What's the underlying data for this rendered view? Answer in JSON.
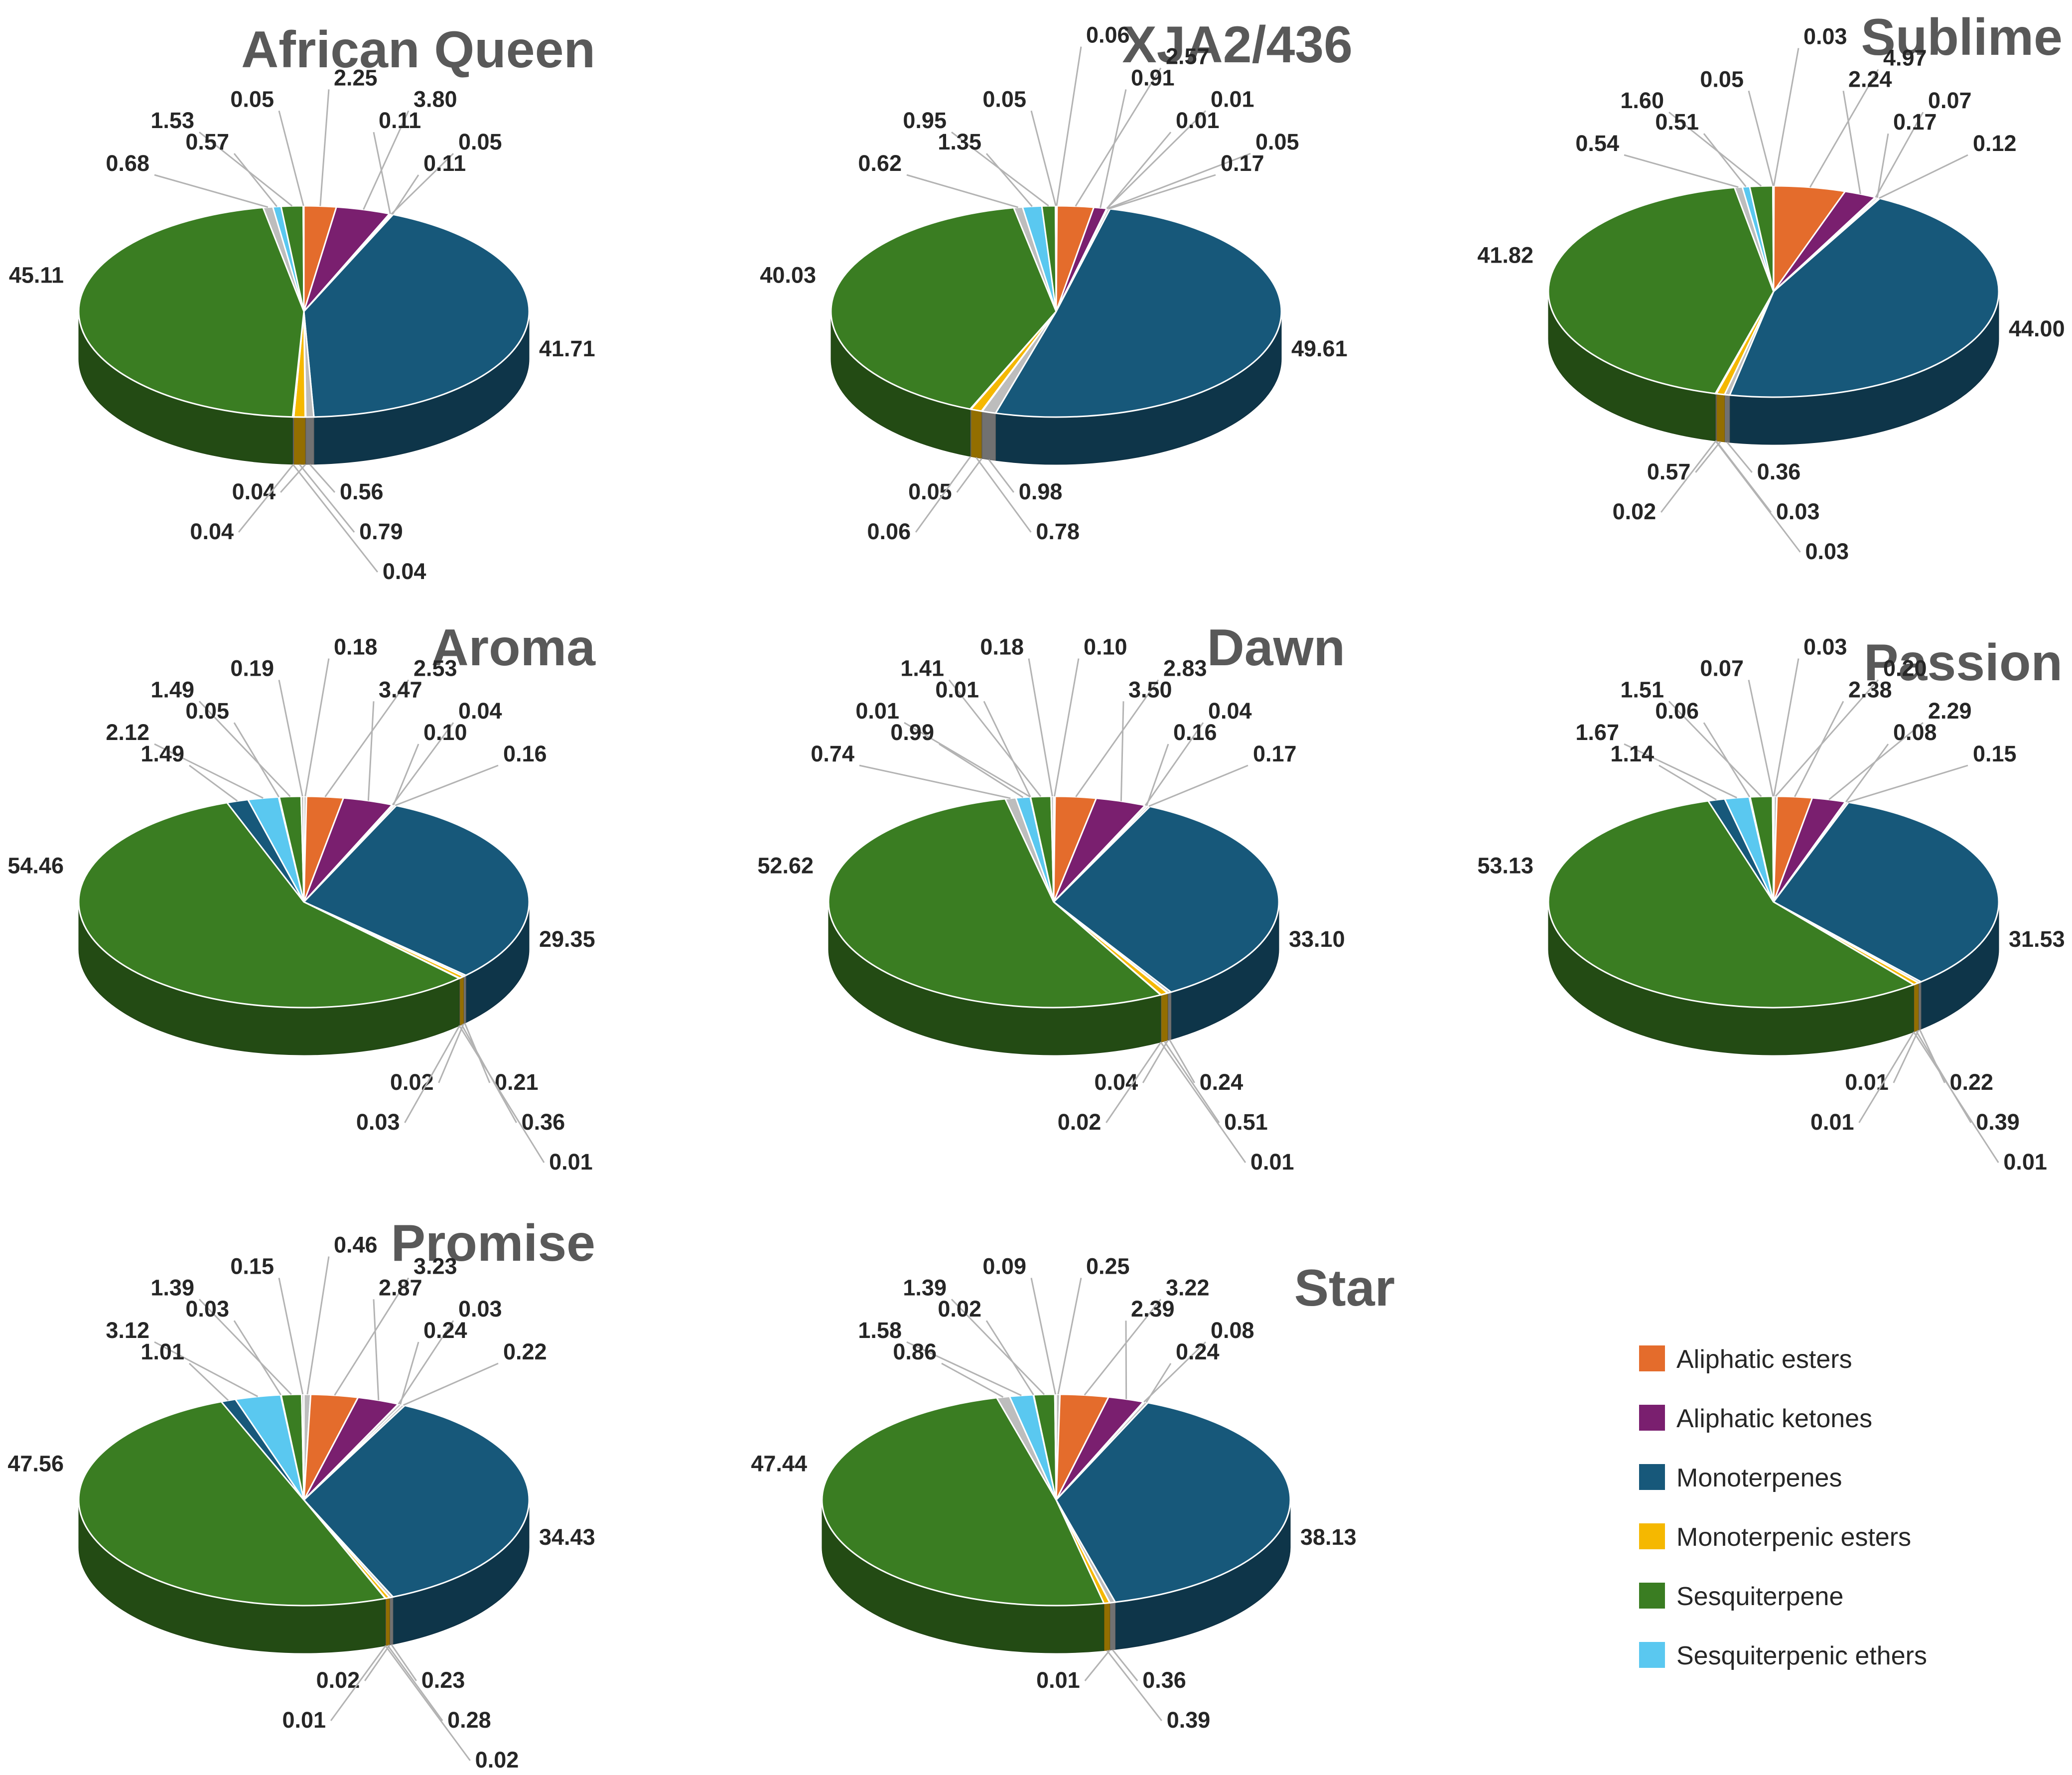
{
  "chart_data": {
    "type": "pie",
    "subtype": "3d-exploded-small-slices",
    "value_unit": "percent of total volatiles",
    "legend": {
      "position": "bottom-right",
      "entries": [
        {
          "name": "Aliphatic esters",
          "color": "#e46c2c"
        },
        {
          "name": "Aliphatic ketones",
          "color": "#7a1f6f"
        },
        {
          "name": "Monoterpenes",
          "color": "#17587a"
        },
        {
          "name": "Monoterpenic esters",
          "color": "#f5b800"
        },
        {
          "name": "Sesquiterpene",
          "color": "#3a7d22"
        },
        {
          "name": "Sesquiterpenic ethers",
          "color": "#5ac8f0"
        }
      ]
    },
    "charts": [
      {
        "title": "African Queen",
        "slices": [
          {
            "category": "Aliphatic esters",
            "value": 2.25
          },
          {
            "category": "Aliphatic ketones",
            "value": 3.8
          },
          {
            "category": "other",
            "value": 0.11
          },
          {
            "category": "other",
            "value": 0.05
          },
          {
            "category": "other",
            "value": 0.11
          },
          {
            "category": "Monoterpenes",
            "value": 41.71
          },
          {
            "category": "other",
            "value": 0.56
          },
          {
            "category": "other",
            "value": 0.04
          },
          {
            "category": "Monoterpenic esters",
            "value": 0.79
          },
          {
            "category": "other",
            "value": 0.04
          },
          {
            "category": "other",
            "value": 0.04
          },
          {
            "category": "Sesquiterpene",
            "value": 45.11
          },
          {
            "category": "other",
            "value": 0.68
          },
          {
            "category": "Sesquiterpenic ethers",
            "value": 0.57
          },
          {
            "category": "Sesquiterpene",
            "value": 1.53
          },
          {
            "category": "other",
            "value": 0.05
          }
        ]
      },
      {
        "title": "XJA2/436",
        "slices": [
          {
            "category": "other",
            "value": 0.06
          },
          {
            "category": "Aliphatic esters",
            "value": 2.57
          },
          {
            "category": "Aliphatic ketones",
            "value": 0.91
          },
          {
            "category": "other",
            "value": 0.01
          },
          {
            "category": "other",
            "value": 0.01
          },
          {
            "category": "other",
            "value": 0.05
          },
          {
            "category": "other",
            "value": 0.17
          },
          {
            "category": "Monoterpenes",
            "value": 49.61
          },
          {
            "category": "other",
            "value": 0.98
          },
          {
            "category": "other",
            "value": 0.05
          },
          {
            "category": "Monoterpenic esters",
            "value": 0.78
          },
          {
            "category": "other",
            "value": 0.06
          },
          {
            "category": "Sesquiterpene",
            "value": 40.03
          },
          {
            "category": "other",
            "value": 0.62
          },
          {
            "category": "Sesquiterpenic ethers",
            "value": 1.35
          },
          {
            "category": "Sesquiterpene",
            "value": 0.95
          },
          {
            "category": "other",
            "value": 0.05
          }
        ]
      },
      {
        "title": "Sublime",
        "slices": [
          {
            "category": "other",
            "value": 0.03
          },
          {
            "category": "Aliphatic esters",
            "value": 4.97
          },
          {
            "category": "Aliphatic ketones",
            "value": 2.24
          },
          {
            "category": "other",
            "value": 0.07
          },
          {
            "category": "other",
            "value": 0.17
          },
          {
            "category": "other",
            "value": 0.12
          },
          {
            "category": "Monoterpenes",
            "value": 44.0
          },
          {
            "category": "other",
            "value": 0.36
          },
          {
            "category": "Monoterpenic esters",
            "value": 0.57
          },
          {
            "category": "other",
            "value": 0.03
          },
          {
            "category": "other",
            "value": 0.02
          },
          {
            "category": "other",
            "value": 0.03
          },
          {
            "category": "Sesquiterpene",
            "value": 41.82
          },
          {
            "category": "other",
            "value": 0.54
          },
          {
            "category": "Sesquiterpenic ethers",
            "value": 0.51
          },
          {
            "category": "Sesquiterpene",
            "value": 1.6
          },
          {
            "category": "other",
            "value": 0.05
          }
        ]
      },
      {
        "title": "Aroma",
        "slices": [
          {
            "category": "other",
            "value": 0.18
          },
          {
            "category": "Aliphatic esters",
            "value": 2.53
          },
          {
            "category": "Aliphatic ketones",
            "value": 3.47
          },
          {
            "category": "other",
            "value": 0.04
          },
          {
            "category": "other",
            "value": 0.1
          },
          {
            "category": "other",
            "value": 0.16
          },
          {
            "category": "Monoterpenes",
            "value": 29.35
          },
          {
            "category": "other",
            "value": 0.21
          },
          {
            "category": "other",
            "value": 0.02
          },
          {
            "category": "Monoterpenic esters",
            "value": 0.36
          },
          {
            "category": "other",
            "value": 0.03
          },
          {
            "category": "other",
            "value": 0.01
          },
          {
            "category": "Sesquiterpene",
            "value": 54.46
          },
          {
            "category": "Monoterpenes",
            "value": 1.49
          },
          {
            "category": "Sesquiterpenic ethers",
            "value": 2.12
          },
          {
            "category": "other",
            "value": 0.05
          },
          {
            "category": "Sesquiterpene",
            "value": 1.49
          },
          {
            "category": "other",
            "value": 0.19
          }
        ]
      },
      {
        "title": "Dawn",
        "slices": [
          {
            "category": "other",
            "value": 0.1
          },
          {
            "category": "Aliphatic esters",
            "value": 2.83
          },
          {
            "category": "Aliphatic ketones",
            "value": 3.5
          },
          {
            "category": "other",
            "value": 0.04
          },
          {
            "category": "other",
            "value": 0.16
          },
          {
            "category": "other",
            "value": 0.17
          },
          {
            "category": "Monoterpenes",
            "value": 33.1
          },
          {
            "category": "other",
            "value": 0.24
          },
          {
            "category": "other",
            "value": 0.04
          },
          {
            "category": "Monoterpenic esters",
            "value": 0.51
          },
          {
            "category": "other",
            "value": 0.02
          },
          {
            "category": "other",
            "value": 0.01
          },
          {
            "category": "Sesquiterpene",
            "value": 52.62
          },
          {
            "category": "other",
            "value": 0.74
          },
          {
            "category": "Sesquiterpenic ethers",
            "value": 0.99
          },
          {
            "category": "other",
            "value": 0.01
          },
          {
            "category": "other",
            "value": 0.01
          },
          {
            "category": "Sesquiterpene",
            "value": 1.41
          },
          {
            "category": "other",
            "value": 0.18
          }
        ]
      },
      {
        "title": "Passion",
        "slices": [
          {
            "category": "other",
            "value": 0.03
          },
          {
            "category": "other",
            "value": 0.2
          },
          {
            "category": "Aliphatic esters",
            "value": 2.38
          },
          {
            "category": "Aliphatic ketones",
            "value": 2.29
          },
          {
            "category": "other",
            "value": 0.08
          },
          {
            "category": "other",
            "value": 0.15
          },
          {
            "category": "Monoterpenes",
            "value": 31.53
          },
          {
            "category": "other",
            "value": 0.22
          },
          {
            "category": "other",
            "value": 0.01
          },
          {
            "category": "Monoterpenic esters",
            "value": 0.39
          },
          {
            "category": "other",
            "value": 0.01
          },
          {
            "category": "other",
            "value": 0.01
          },
          {
            "category": "Sesquiterpene",
            "value": 53.13
          },
          {
            "category": "Monoterpenes",
            "value": 1.14
          },
          {
            "category": "Sesquiterpenic ethers",
            "value": 1.67
          },
          {
            "category": "other",
            "value": 0.06
          },
          {
            "category": "Sesquiterpene",
            "value": 1.51
          },
          {
            "category": "other",
            "value": 0.07
          }
        ]
      },
      {
        "title": "Promise",
        "slices": [
          {
            "category": "other",
            "value": 0.46
          },
          {
            "category": "Aliphatic esters",
            "value": 3.23
          },
          {
            "category": "Aliphatic ketones",
            "value": 2.87
          },
          {
            "category": "other",
            "value": 0.03
          },
          {
            "category": "other",
            "value": 0.24
          },
          {
            "category": "other",
            "value": 0.22
          },
          {
            "category": "Monoterpenes",
            "value": 34.43
          },
          {
            "category": "other",
            "value": 0.23
          },
          {
            "category": "other",
            "value": 0.02
          },
          {
            "category": "Monoterpenic esters",
            "value": 0.28
          },
          {
            "category": "other",
            "value": 0.01
          },
          {
            "category": "other",
            "value": 0.02
          },
          {
            "category": "Sesquiterpene",
            "value": 47.56
          },
          {
            "category": "Monoterpenes",
            "value": 1.01
          },
          {
            "category": "Sesquiterpenic ethers",
            "value": 3.12
          },
          {
            "category": "other",
            "value": 0.03
          },
          {
            "category": "Sesquiterpene",
            "value": 1.39
          },
          {
            "category": "other",
            "value": 0.15
          }
        ]
      },
      {
        "title": "Star",
        "slices": [
          {
            "category": "other",
            "value": 0.25
          },
          {
            "category": "Aliphatic esters",
            "value": 3.22
          },
          {
            "category": "Aliphatic ketones",
            "value": 2.39
          },
          {
            "category": "other",
            "value": 0.08
          },
          {
            "category": "other",
            "value": 0.24
          },
          {
            "category": "Monoterpenes",
            "value": 38.13
          },
          {
            "category": "other",
            "value": 0.36
          },
          {
            "category": "other",
            "value": 0.01
          },
          {
            "category": "Monoterpenic esters",
            "value": 0.39
          },
          {
            "category": "Sesquiterpene",
            "value": 47.44
          },
          {
            "category": "other",
            "value": 0.86
          },
          {
            "category": "Sesquiterpenic ethers",
            "value": 1.58
          },
          {
            "category": "other",
            "value": 0.02
          },
          {
            "category": "Sesquiterpene",
            "value": 1.39
          },
          {
            "category": "other",
            "value": 0.09
          }
        ]
      }
    ]
  }
}
